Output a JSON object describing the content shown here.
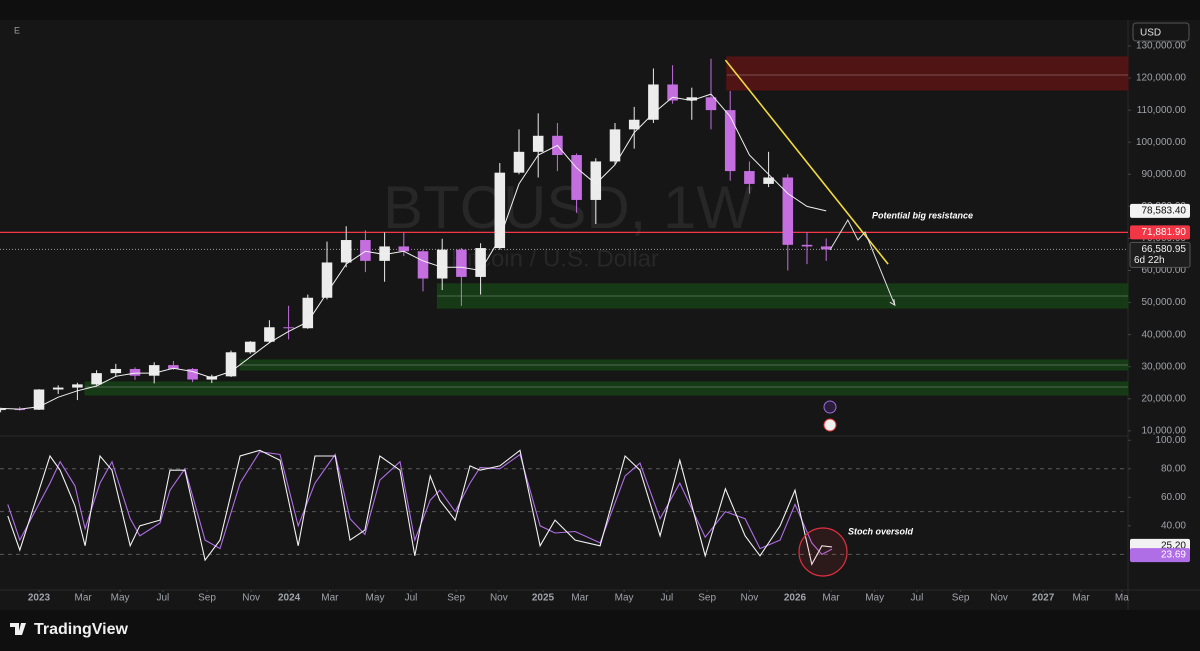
{
  "header": {
    "menu": "E",
    "currency": "USD"
  },
  "footer": {
    "brand": "TradingView"
  },
  "chart_data": [
    {
      "type": "candlestick",
      "title": "BTCUSD, 1W",
      "subtitle": "Bitcoin / U.S. Dollar",
      "up_color": "#ececec",
      "down_color": "#c46ee0",
      "x": [
        -8,
        -4,
        0,
        4,
        8,
        12,
        16,
        20,
        24,
        28,
        32,
        36,
        40,
        44,
        48,
        52,
        56,
        60,
        64,
        68,
        72,
        76,
        80,
        84,
        88,
        92,
        96,
        100,
        104,
        108,
        112,
        116,
        120,
        124,
        128,
        132,
        136,
        140,
        144,
        148,
        152,
        156,
        160,
        164
      ],
      "open": [
        16500,
        16800,
        16600,
        22900,
        23500,
        24500,
        28000,
        29300,
        27200,
        30500,
        29300,
        26000,
        27000,
        34500,
        37800,
        42300,
        42000,
        51500,
        62500,
        69500,
        63000,
        67500,
        66000,
        57500,
        66500,
        58000,
        67000,
        90500,
        97000,
        102000,
        96000,
        82000,
        94000,
        104000,
        107000,
        118000,
        113000,
        114000,
        110000,
        91000,
        87000,
        89000,
        68000,
        67500
      ],
      "high": [
        17200,
        17500,
        23000,
        24200,
        25000,
        28900,
        30900,
        29800,
        31400,
        31800,
        29600,
        27500,
        35000,
        38000,
        44500,
        49000,
        52500,
        69000,
        73800,
        72500,
        71900,
        71900,
        66500,
        69900,
        67000,
        68500,
        93500,
        104000,
        109000,
        106000,
        96500,
        95000,
        106000,
        111000,
        123000,
        124000,
        117000,
        126000,
        116000,
        94000,
        97000,
        90000,
        72000,
        70000
      ],
      "low": [
        15800,
        16300,
        16500,
        21500,
        19600,
        24200,
        26800,
        25900,
        24800,
        29000,
        25200,
        24900,
        26800,
        34000,
        37500,
        38500,
        41800,
        51000,
        61000,
        59500,
        56500,
        64500,
        53500,
        53900,
        49000,
        52500,
        66500,
        90000,
        89000,
        91000,
        78000,
        74500,
        93000,
        98000,
        106000,
        112000,
        107000,
        104000,
        88000,
        84000,
        86000,
        60000,
        62000,
        63000
      ],
      "close": [
        16800,
        16600,
        22900,
        23500,
        24500,
        28000,
        29300,
        27200,
        30500,
        29300,
        26000,
        27000,
        34500,
        37800,
        42300,
        42000,
        51500,
        62500,
        69500,
        63000,
        67500,
        66000,
        57500,
        66500,
        58000,
        67000,
        90500,
        97000,
        102000,
        96000,
        82000,
        94000,
        104000,
        107000,
        118000,
        113000,
        114000,
        110000,
        91000,
        87000,
        89000,
        68000,
        67500,
        66580.95
      ],
      "last_label": "66,580.95",
      "countdown": "6d 22h",
      "ma": {
        "color": "#f0f0f0",
        "values": [
          17000,
          16800,
          17500,
          20500,
          22500,
          24000,
          27000,
          28000,
          28000,
          29500,
          28500,
          26500,
          28500,
          33000,
          37500,
          41000,
          44000,
          53000,
          62000,
          66000,
          65000,
          66000,
          63000,
          61000,
          61000,
          60000,
          70000,
          87000,
          96000,
          99000,
          92000,
          87000,
          93000,
          103000,
          109000,
          114000,
          113000,
          115000,
          108000,
          96000,
          90000,
          84000,
          80000,
          78583.4
        ],
        "last_label": "78,583.40"
      },
      "resistance_line": {
        "value": 71881.9,
        "label": "71,881.90",
        "color": "#f23645"
      },
      "zones": [
        {
          "from": 143.3,
          "to": 226.875,
          "low": 116300,
          "high": 126570,
          "mid": 120950,
          "color": "#5a1414"
        },
        {
          "from": 83,
          "to": 226.875,
          "low": 48300,
          "high": 55800,
          "mid": 52050,
          "color": "#163f16"
        },
        {
          "from": 41.9,
          "to": 226.875,
          "low": 29000,
          "high": 32100,
          "mid": 30540,
          "color": "#163f16"
        },
        {
          "from": 9.6,
          "to": 226.875,
          "low": 21180,
          "high": 25236,
          "mid": 23680,
          "color": "#163f16"
        }
      ],
      "trendline": {
        "x": [
          143,
          176.9
        ],
        "values": [
          125600,
          62000
        ],
        "color": "#f2dc3c"
      },
      "projection": {
        "x": [
          164.8,
          168.5,
          170.6,
          172.1,
          178.3
        ],
        "values": [
          66400,
          75750,
          69500,
          72000,
          49200
        ],
        "color": "#e0e0e0"
      },
      "annotations": [
        "Potential big resistance"
      ],
      "xlim": [
        -8.125,
        226.875
      ],
      "ylim": [
        8400,
        138100
      ],
      "yticks": [
        {
          "value": 130000,
          "label": "130,000.00"
        },
        {
          "value": 120000,
          "label": "120,000.00"
        },
        {
          "value": 110000,
          "label": "110,000.00"
        },
        {
          "value": 100000,
          "label": "100,000.00"
        },
        {
          "value": 90000,
          "label": "90,000.00"
        },
        {
          "value": 80000,
          "label": "80,000.00"
        },
        {
          "value": 70000,
          "label": "70,000.00"
        },
        {
          "value": 60000,
          "label": "60,000.00"
        },
        {
          "value": 50000,
          "label": "50,000.00"
        },
        {
          "value": 40000,
          "label": "40,000.00"
        },
        {
          "value": 30000,
          "label": "30,000.00"
        },
        {
          "value": 20000,
          "label": "20,000.00"
        },
        {
          "value": 10000,
          "label": "10,000.00"
        }
      ],
      "grid": false
    },
    {
      "type": "line",
      "x": [
        -6.5,
        -4,
        2.3,
        4.4,
        7.5,
        9.6,
        12.7,
        15.2,
        19,
        21,
        25.2,
        27.3,
        30.4,
        34.6,
        37.7,
        41.9,
        46,
        50.2,
        54,
        57.5,
        61.7,
        64.8,
        67.9,
        71,
        75.2,
        78.3,
        81.5,
        83.5,
        86.7,
        89.8,
        91.9,
        96,
        100.2,
        104.4,
        107.5,
        111.7,
        116.9,
        122.1,
        125.2,
        129.4,
        133.5,
        138.8,
        143,
        147.1,
        150.2,
        154.4,
        157.5,
        161,
        163.1,
        165.2
      ],
      "series": [
        {
          "color": "#f2f2f2",
          "values": [
            47,
            23,
            89,
            79,
            54,
            26,
            89,
            79,
            26,
            40,
            44,
            79,
            79,
            16,
            30,
            89,
            93,
            86,
            26,
            89,
            89,
            30,
            37,
            89,
            79,
            19,
            75,
            58,
            44,
            82,
            79,
            82,
            93,
            26,
            44,
            30,
            26,
            89,
            79,
            33,
            86,
            19,
            66,
            33,
            19,
            40,
            65,
            13,
            26,
            25.2
          ],
          "last_label": "25.20"
        },
        {
          "color": "#b06ee6",
          "values": [
            55,
            30,
            70,
            85,
            68,
            38,
            70,
            85,
            45,
            33,
            42,
            65,
            80,
            30,
            24,
            70,
            92,
            90,
            40,
            70,
            90,
            45,
            34,
            72,
            85,
            30,
            58,
            65,
            50,
            70,
            81,
            80,
            90,
            40,
            35,
            36,
            28,
            75,
            84,
            45,
            70,
            32,
            50,
            45,
            24,
            30,
            55,
            28,
            20,
            23.69
          ],
          "last_label": "23.69"
        }
      ],
      "levels": [
        80,
        50,
        20
      ],
      "annotations": [
        "Stoch oversold"
      ],
      "xlim": [
        -8.125,
        226.875
      ],
      "ylim": [
        -5,
        103
      ],
      "yticks": [
        {
          "value": 100,
          "label": "100.00"
        },
        {
          "value": 80,
          "label": "80.00"
        },
        {
          "value": 60,
          "label": "60.00"
        },
        {
          "value": 40,
          "label": "40.00"
        }
      ],
      "xticks": [
        {
          "value": 0,
          "label": "2023"
        },
        {
          "value": 9.2,
          "label": "Mar"
        },
        {
          "value": 16.9,
          "label": "May"
        },
        {
          "value": 25.8,
          "label": "Jul"
        },
        {
          "value": 35,
          "label": "Sep"
        },
        {
          "value": 44.2,
          "label": "Nov"
        },
        {
          "value": 52.1,
          "label": "2024"
        },
        {
          "value": 60.6,
          "label": "Mar"
        },
        {
          "value": 70,
          "label": "May"
        },
        {
          "value": 77.5,
          "label": "Jul"
        },
        {
          "value": 86.9,
          "label": "Sep"
        },
        {
          "value": 95.8,
          "label": "Nov"
        },
        {
          "value": 105,
          "label": "2025"
        },
        {
          "value": 112.7,
          "label": "Mar"
        },
        {
          "value": 121.9,
          "label": "May"
        },
        {
          "value": 130.8,
          "label": "Jul"
        },
        {
          "value": 139.2,
          "label": "Sep"
        },
        {
          "value": 148,
          "label": "Nov"
        },
        {
          "value": 157.5,
          "label": "2026"
        },
        {
          "value": 165,
          "label": "Mar"
        },
        {
          "value": 174.1,
          "label": "May"
        },
        {
          "value": 182.9,
          "label": "Jul"
        },
        {
          "value": 192,
          "label": "Sep"
        },
        {
          "value": 200,
          "label": "Nov"
        },
        {
          "value": 209.2,
          "label": "2027"
        },
        {
          "value": 217.1,
          "label": "Mar"
        },
        {
          "value": 225.6,
          "label": "Ma"
        }
      ]
    }
  ]
}
